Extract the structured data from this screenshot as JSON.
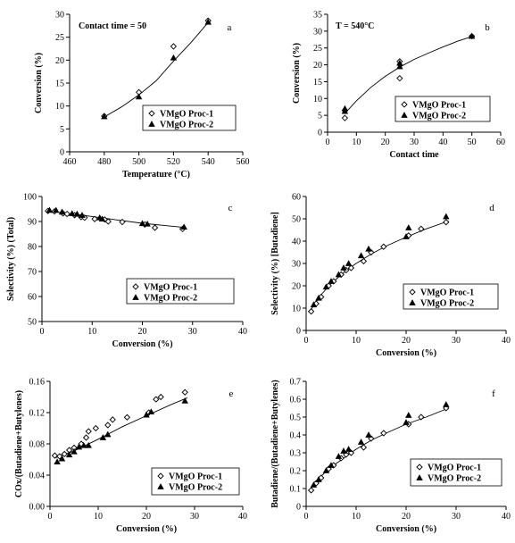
{
  "chart_data": [
    {
      "id": "a",
      "type": "scatter",
      "panel_label": "a",
      "annotation": "Contact time = 50",
      "xlabel": "Temperature (°C)",
      "ylabel": "Conversion (%)",
      "xlim": [
        460,
        560
      ],
      "ylim": [
        0,
        30
      ],
      "xticks": [
        460,
        480,
        500,
        520,
        540,
        560
      ],
      "yticks": [
        0,
        5,
        10,
        15,
        20,
        25,
        30
      ],
      "legend_position": "bottom-right",
      "series": [
        {
          "name": "VMgO Proc-1",
          "marker": "diamond",
          "points": [
            [
              480,
              7.8
            ],
            [
              500,
              13.0
            ],
            [
              520,
              23.0
            ],
            [
              540,
              28.6
            ]
          ]
        },
        {
          "name": "VMgO Proc-2",
          "marker": "triangle",
          "points": [
            [
              480,
              7.7
            ],
            [
              500,
              12.0
            ],
            [
              520,
              20.5
            ],
            [
              540,
              28.3
            ]
          ]
        }
      ],
      "trendline": [
        [
          480,
          7.6
        ],
        [
          490,
          9.8
        ],
        [
          500,
          12.4
        ],
        [
          510,
          15.5
        ],
        [
          520,
          19.8
        ],
        [
          530,
          23.8
        ],
        [
          540,
          28.2
        ]
      ]
    },
    {
      "id": "b",
      "type": "scatter",
      "panel_label": "b",
      "annotation": "T = 540°C",
      "xlabel": "Contact time",
      "ylabel": "Conversion (%)",
      "xlim": [
        0,
        60
      ],
      "ylim": [
        0,
        35
      ],
      "xticks": [
        0,
        10,
        20,
        30,
        40,
        50,
        60
      ],
      "yticks": [
        0,
        5,
        10,
        15,
        20,
        25,
        30,
        35
      ],
      "legend_position": "bottom-right",
      "series": [
        {
          "name": "VMgO Proc-1",
          "marker": "diamond",
          "points": [
            [
              6,
              4.2
            ],
            [
              6,
              6.5
            ],
            [
              25,
              16.0
            ],
            [
              25,
              21.0
            ],
            [
              50,
              28.5
            ]
          ]
        },
        {
          "name": "VMgO Proc-2",
          "marker": "triangle",
          "points": [
            [
              6,
              6.2
            ],
            [
              6,
              7.0
            ],
            [
              25,
              19.5
            ],
            [
              25,
              20.5
            ],
            [
              50,
              28.5
            ]
          ]
        }
      ],
      "trendline": [
        [
          6,
          5.6
        ],
        [
          10,
          9.3
        ],
        [
          15,
          13.3
        ],
        [
          20,
          16.6
        ],
        [
          25,
          19.3
        ],
        [
          30,
          21.6
        ],
        [
          35,
          23.5
        ],
        [
          40,
          25.3
        ],
        [
          45,
          27.0
        ],
        [
          50,
          28.4
        ]
      ]
    },
    {
      "id": "c",
      "type": "scatter",
      "panel_label": "c",
      "annotation": "",
      "xlabel": "Conversion (%)",
      "ylabel": "Selectivity (%) (Total)",
      "xlim": [
        0,
        40
      ],
      "ylim": [
        50,
        100
      ],
      "xticks": [
        0,
        10,
        20,
        30,
        40
      ],
      "yticks": [
        50,
        60,
        70,
        80,
        90,
        100
      ],
      "legend_position": "bottom-right",
      "series": [
        {
          "name": "VMgO Proc-1",
          "marker": "diamond",
          "points": [
            [
              1.2,
              94.2
            ],
            [
              2.5,
              94.0
            ],
            [
              4.2,
              93.2
            ],
            [
              5.0,
              93.0
            ],
            [
              6.5,
              92.5
            ],
            [
              7.8,
              91.8
            ],
            [
              8.5,
              91.5
            ],
            [
              10.5,
              91.0
            ],
            [
              12.5,
              90.8
            ],
            [
              13.2,
              90.0
            ],
            [
              16.0,
              89.8
            ],
            [
              20.5,
              88.8
            ],
            [
              22.5,
              87.5
            ],
            [
              28.0,
              87.0
            ]
          ]
        },
        {
          "name": "VMgO Proc-2",
          "marker": "triangle",
          "points": [
            [
              1.5,
              94.5
            ],
            [
              2.8,
              94.5
            ],
            [
              4.0,
              93.8
            ],
            [
              6.0,
              93.2
            ],
            [
              7.0,
              93.0
            ],
            [
              8.0,
              92.5
            ],
            [
              11.5,
              91.5
            ],
            [
              12.0,
              91.0
            ],
            [
              20.0,
              89.2
            ],
            [
              21.0,
              89.0
            ],
            [
              28.3,
              87.8
            ]
          ]
        }
      ],
      "trendline": [
        [
          1,
          94.3
        ],
        [
          5,
          93.3
        ],
        [
          10,
          92.0
        ],
        [
          15,
          90.6
        ],
        [
          20,
          89.3
        ],
        [
          25,
          88.3
        ],
        [
          28.5,
          87.6
        ]
      ]
    },
    {
      "id": "d",
      "type": "scatter",
      "panel_label": "d",
      "annotation": "",
      "xlabel": "Conversion (%)",
      "ylabel": "Selectivity (%) [Butadiene]",
      "xlim": [
        0,
        40
      ],
      "ylim": [
        0,
        60
      ],
      "xticks": [
        0,
        10,
        20,
        30,
        40
      ],
      "yticks": [
        0,
        10,
        20,
        30,
        40,
        50,
        60
      ],
      "legend_position": "bottom-right",
      "series": [
        {
          "name": "VMgO Proc-1",
          "marker": "diamond",
          "points": [
            [
              1.0,
              8.5
            ],
            [
              2.0,
              12.0
            ],
            [
              3.0,
              15.0
            ],
            [
              4.5,
              20.0
            ],
            [
              5.5,
              22.0
            ],
            [
              7.0,
              25.0
            ],
            [
              8.0,
              27.0
            ],
            [
              9.0,
              28.0
            ],
            [
              11.5,
              31.0
            ],
            [
              13.0,
              35.0
            ],
            [
              15.5,
              37.5
            ],
            [
              20.5,
              42.5
            ],
            [
              23.0,
              45.5
            ],
            [
              28.0,
              48.5
            ]
          ]
        },
        {
          "name": "VMgO Proc-2",
          "marker": "triangle",
          "points": [
            [
              1.5,
              11.5
            ],
            [
              2.5,
              14.5
            ],
            [
              4.0,
              19.5
            ],
            [
              5.0,
              22.0
            ],
            [
              6.5,
              25.0
            ],
            [
              7.5,
              28.0
            ],
            [
              8.5,
              30.0
            ],
            [
              11.0,
              33.5
            ],
            [
              12.5,
              36.5
            ],
            [
              20.0,
              42.0
            ],
            [
              20.5,
              46.0
            ],
            [
              28.0,
              51.0
            ]
          ]
        }
      ],
      "trendline": [
        [
          1,
          9.5
        ],
        [
          3,
          16.0
        ],
        [
          5,
          21.0
        ],
        [
          8,
          26.8
        ],
        [
          10,
          30.0
        ],
        [
          13,
          34.2
        ],
        [
          16,
          37.8
        ],
        [
          20,
          41.8
        ],
        [
          24,
          45.5
        ],
        [
          28.5,
          49.0
        ]
      ]
    },
    {
      "id": "e",
      "type": "scatter",
      "panel_label": "e",
      "annotation": "",
      "xlabel": "Conversion (%)",
      "ylabel": "COx/(Butadiene+Butylenes)",
      "xlim": [
        0,
        40
      ],
      "ylim": [
        0,
        0.16
      ],
      "xticks": [
        0,
        10,
        20,
        30,
        40
      ],
      "yticks": [
        0,
        0.04,
        0.08,
        0.12,
        0.16
      ],
      "ytick_labels": [
        "0.00",
        "0.04",
        "0.08",
        "0.12",
        "0.16"
      ],
      "legend_position": "bottom-right",
      "series": [
        {
          "name": "VMgO Proc-1",
          "marker": "diamond",
          "points": [
            [
              1.0,
              0.065
            ],
            [
              2.0,
              0.064
            ],
            [
              3.0,
              0.067
            ],
            [
              4.0,
              0.072
            ],
            [
              5.0,
              0.075
            ],
            [
              6.5,
              0.08
            ],
            [
              7.5,
              0.088
            ],
            [
              8.0,
              0.096
            ],
            [
              9.5,
              0.1
            ],
            [
              12.0,
              0.104
            ],
            [
              13.0,
              0.111
            ],
            [
              16.0,
              0.114
            ],
            [
              20.5,
              0.12
            ],
            [
              22.0,
              0.137
            ],
            [
              23.0,
              0.14
            ],
            [
              28.0,
              0.146
            ]
          ]
        },
        {
          "name": "VMgO Proc-2",
          "marker": "triangle",
          "points": [
            [
              1.5,
              0.057
            ],
            [
              2.5,
              0.061
            ],
            [
              4.0,
              0.066
            ],
            [
              5.0,
              0.07
            ],
            [
              6.0,
              0.076
            ],
            [
              7.0,
              0.078
            ],
            [
              8.0,
              0.078
            ],
            [
              11.0,
              0.088
            ],
            [
              12.0,
              0.092
            ],
            [
              20.0,
              0.117
            ],
            [
              21.0,
              0.121
            ],
            [
              28.0,
              0.135
            ]
          ]
        }
      ],
      "trendline": [
        [
          1,
          0.062
        ],
        [
          5,
          0.071
        ],
        [
          10,
          0.086
        ],
        [
          15,
          0.102
        ],
        [
          20,
          0.116
        ],
        [
          25,
          0.13
        ],
        [
          28.5,
          0.139
        ]
      ]
    },
    {
      "id": "f",
      "type": "scatter",
      "panel_label": "f",
      "annotation": "",
      "xlabel": "Conversion (%)",
      "ylabel": "Butadiene/(Butadiene+Butylenes)",
      "xlim": [
        0,
        40
      ],
      "ylim": [
        0,
        0.7
      ],
      "xticks": [
        0,
        10,
        20,
        30,
        40
      ],
      "yticks": [
        0,
        0.1,
        0.2,
        0.3,
        0.4,
        0.5,
        0.6,
        0.7
      ],
      "legend_position": "bottom-right",
      "series": [
        {
          "name": "VMgO Proc-1",
          "marker": "diamond",
          "points": [
            [
              1.0,
              0.09
            ],
            [
              2.0,
              0.13
            ],
            [
              3.0,
              0.16
            ],
            [
              4.5,
              0.21
            ],
            [
              5.5,
              0.23
            ],
            [
              7.0,
              0.27
            ],
            [
              8.0,
              0.29
            ],
            [
              9.0,
              0.3
            ],
            [
              11.5,
              0.33
            ],
            [
              13.0,
              0.38
            ],
            [
              15.5,
              0.41
            ],
            [
              20.5,
              0.46
            ],
            [
              23.0,
              0.5
            ],
            [
              28.0,
              0.55
            ]
          ]
        },
        {
          "name": "VMgO Proc-2",
          "marker": "triangle",
          "points": [
            [
              1.5,
              0.12
            ],
            [
              2.5,
              0.15
            ],
            [
              4.0,
              0.2
            ],
            [
              5.0,
              0.23
            ],
            [
              6.5,
              0.28
            ],
            [
              7.5,
              0.31
            ],
            [
              8.5,
              0.32
            ],
            [
              11.0,
              0.36
            ],
            [
              12.5,
              0.4
            ],
            [
              20.0,
              0.47
            ],
            [
              20.5,
              0.51
            ],
            [
              28.0,
              0.57
            ]
          ]
        }
      ],
      "trendline": [
        [
          1,
          0.1
        ],
        [
          3,
          0.17
        ],
        [
          5,
          0.22
        ],
        [
          8,
          0.28
        ],
        [
          10,
          0.32
        ],
        [
          13,
          0.37
        ],
        [
          16,
          0.41
        ],
        [
          20,
          0.46
        ],
        [
          24,
          0.5
        ],
        [
          28.5,
          0.55
        ]
      ]
    }
  ]
}
